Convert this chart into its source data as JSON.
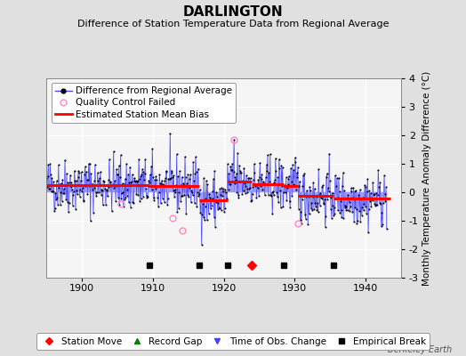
{
  "title": "DARLINGTON",
  "subtitle": "Difference of Station Temperature Data from Regional Average",
  "ylabel_right": "Monthly Temperature Anomaly Difference (°C)",
  "watermark": "Berkeley Earth",
  "xlim": [
    1895,
    1945
  ],
  "ylim": [
    -3,
    4
  ],
  "yticks": [
    -3,
    -2,
    -1,
    0,
    1,
    2,
    3,
    4
  ],
  "xticks": [
    1900,
    1910,
    1920,
    1930,
    1940
  ],
  "bg_color": "#e0e0e0",
  "plot_bg_color": "#f5f5f5",
  "grid_color": "#ffffff",
  "line_color": "#4444ff",
  "marker_color": "black",
  "bias_color": "red",
  "seed": 42,
  "n_points": 576,
  "start_year": 1895.0,
  "empirical_breaks_x": [
    1909.5,
    1916.5,
    1920.5,
    1928.5,
    1935.5
  ],
  "station_move_x": [
    1924.0
  ],
  "bias_segments": [
    {
      "x_start": 1895.0,
      "x_end": 1909.5,
      "bias": 0.25
    },
    {
      "x_start": 1909.5,
      "x_end": 1916.5,
      "bias": 0.22
    },
    {
      "x_start": 1916.5,
      "x_end": 1920.5,
      "bias": -0.28
    },
    {
      "x_start": 1920.5,
      "x_end": 1924.0,
      "bias": 0.38
    },
    {
      "x_start": 1924.0,
      "x_end": 1928.5,
      "bias": 0.28
    },
    {
      "x_start": 1928.5,
      "x_end": 1930.5,
      "bias": 0.22
    },
    {
      "x_start": 1930.5,
      "x_end": 1935.5,
      "bias": -0.12
    },
    {
      "x_start": 1935.5,
      "x_end": 1943.5,
      "bias": -0.22
    }
  ],
  "qc_failed_times": [
    1905.5,
    1912.8,
    1914.2,
    1921.5,
    1930.5
  ],
  "qc_failed_vals": [
    -0.4,
    -0.9,
    -1.35,
    1.85,
    -1.1
  ],
  "outlier_time": 1921.5,
  "outlier_val": 1.85,
  "event_y": -2.55,
  "title_fontsize": 11,
  "subtitle_fontsize": 8,
  "tick_fontsize": 8,
  "legend_fontsize": 7.5,
  "watermark_fontsize": 7
}
